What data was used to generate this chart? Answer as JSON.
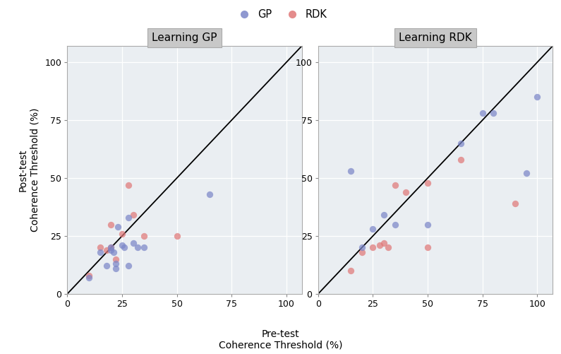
{
  "panel_titles": [
    "Learning GP",
    "Learning RDK"
  ],
  "xlabel_line1": "Pre-test",
  "xlabel_line2": "Coherence Threshold (%)",
  "ylabel_line1": "Post-test",
  "ylabel_line2": "Coherence Threshold (%)",
  "xlim": [
    0,
    107
  ],
  "ylim": [
    0,
    107
  ],
  "xticks": [
    0,
    25,
    50,
    75,
    100
  ],
  "yticks": [
    0,
    25,
    50,
    75,
    100
  ],
  "color_GP": "#7B86C8",
  "color_RDK": "#E07878",
  "panel_bg": "#EAEEF2",
  "grid_color": "#FFFFFF",
  "strip_bg": "#C8C8C8",
  "strip_edge": "#AAAAAA",
  "GP_learning_GP_x": [
    10,
    15,
    18,
    20,
    20,
    21,
    22,
    22,
    23,
    25,
    26,
    28,
    28,
    30,
    32,
    35,
    65
  ],
  "GP_learning_GP_y": [
    7,
    18,
    12,
    19,
    20,
    18,
    11,
    13,
    29,
    21,
    20,
    33,
    12,
    22,
    20,
    20,
    43
  ],
  "RDK_learning_GP_x": [
    10,
    15,
    18,
    20,
    20,
    22,
    25,
    28,
    30,
    35,
    50
  ],
  "RDK_learning_GP_y": [
    8,
    20,
    19,
    20,
    30,
    15,
    26,
    47,
    34,
    25,
    25
  ],
  "GP_learning_RDK_x": [
    15,
    20,
    25,
    30,
    35,
    50,
    65,
    75,
    80,
    95,
    100
  ],
  "GP_learning_RDK_y": [
    53,
    20,
    28,
    34,
    30,
    30,
    65,
    78,
    78,
    52,
    85
  ],
  "RDK_learning_RDK_x": [
    15,
    20,
    25,
    28,
    30,
    32,
    35,
    40,
    50,
    50,
    65,
    90
  ],
  "RDK_learning_RDK_y": [
    10,
    18,
    20,
    21,
    22,
    20,
    47,
    44,
    48,
    20,
    58,
    39
  ]
}
